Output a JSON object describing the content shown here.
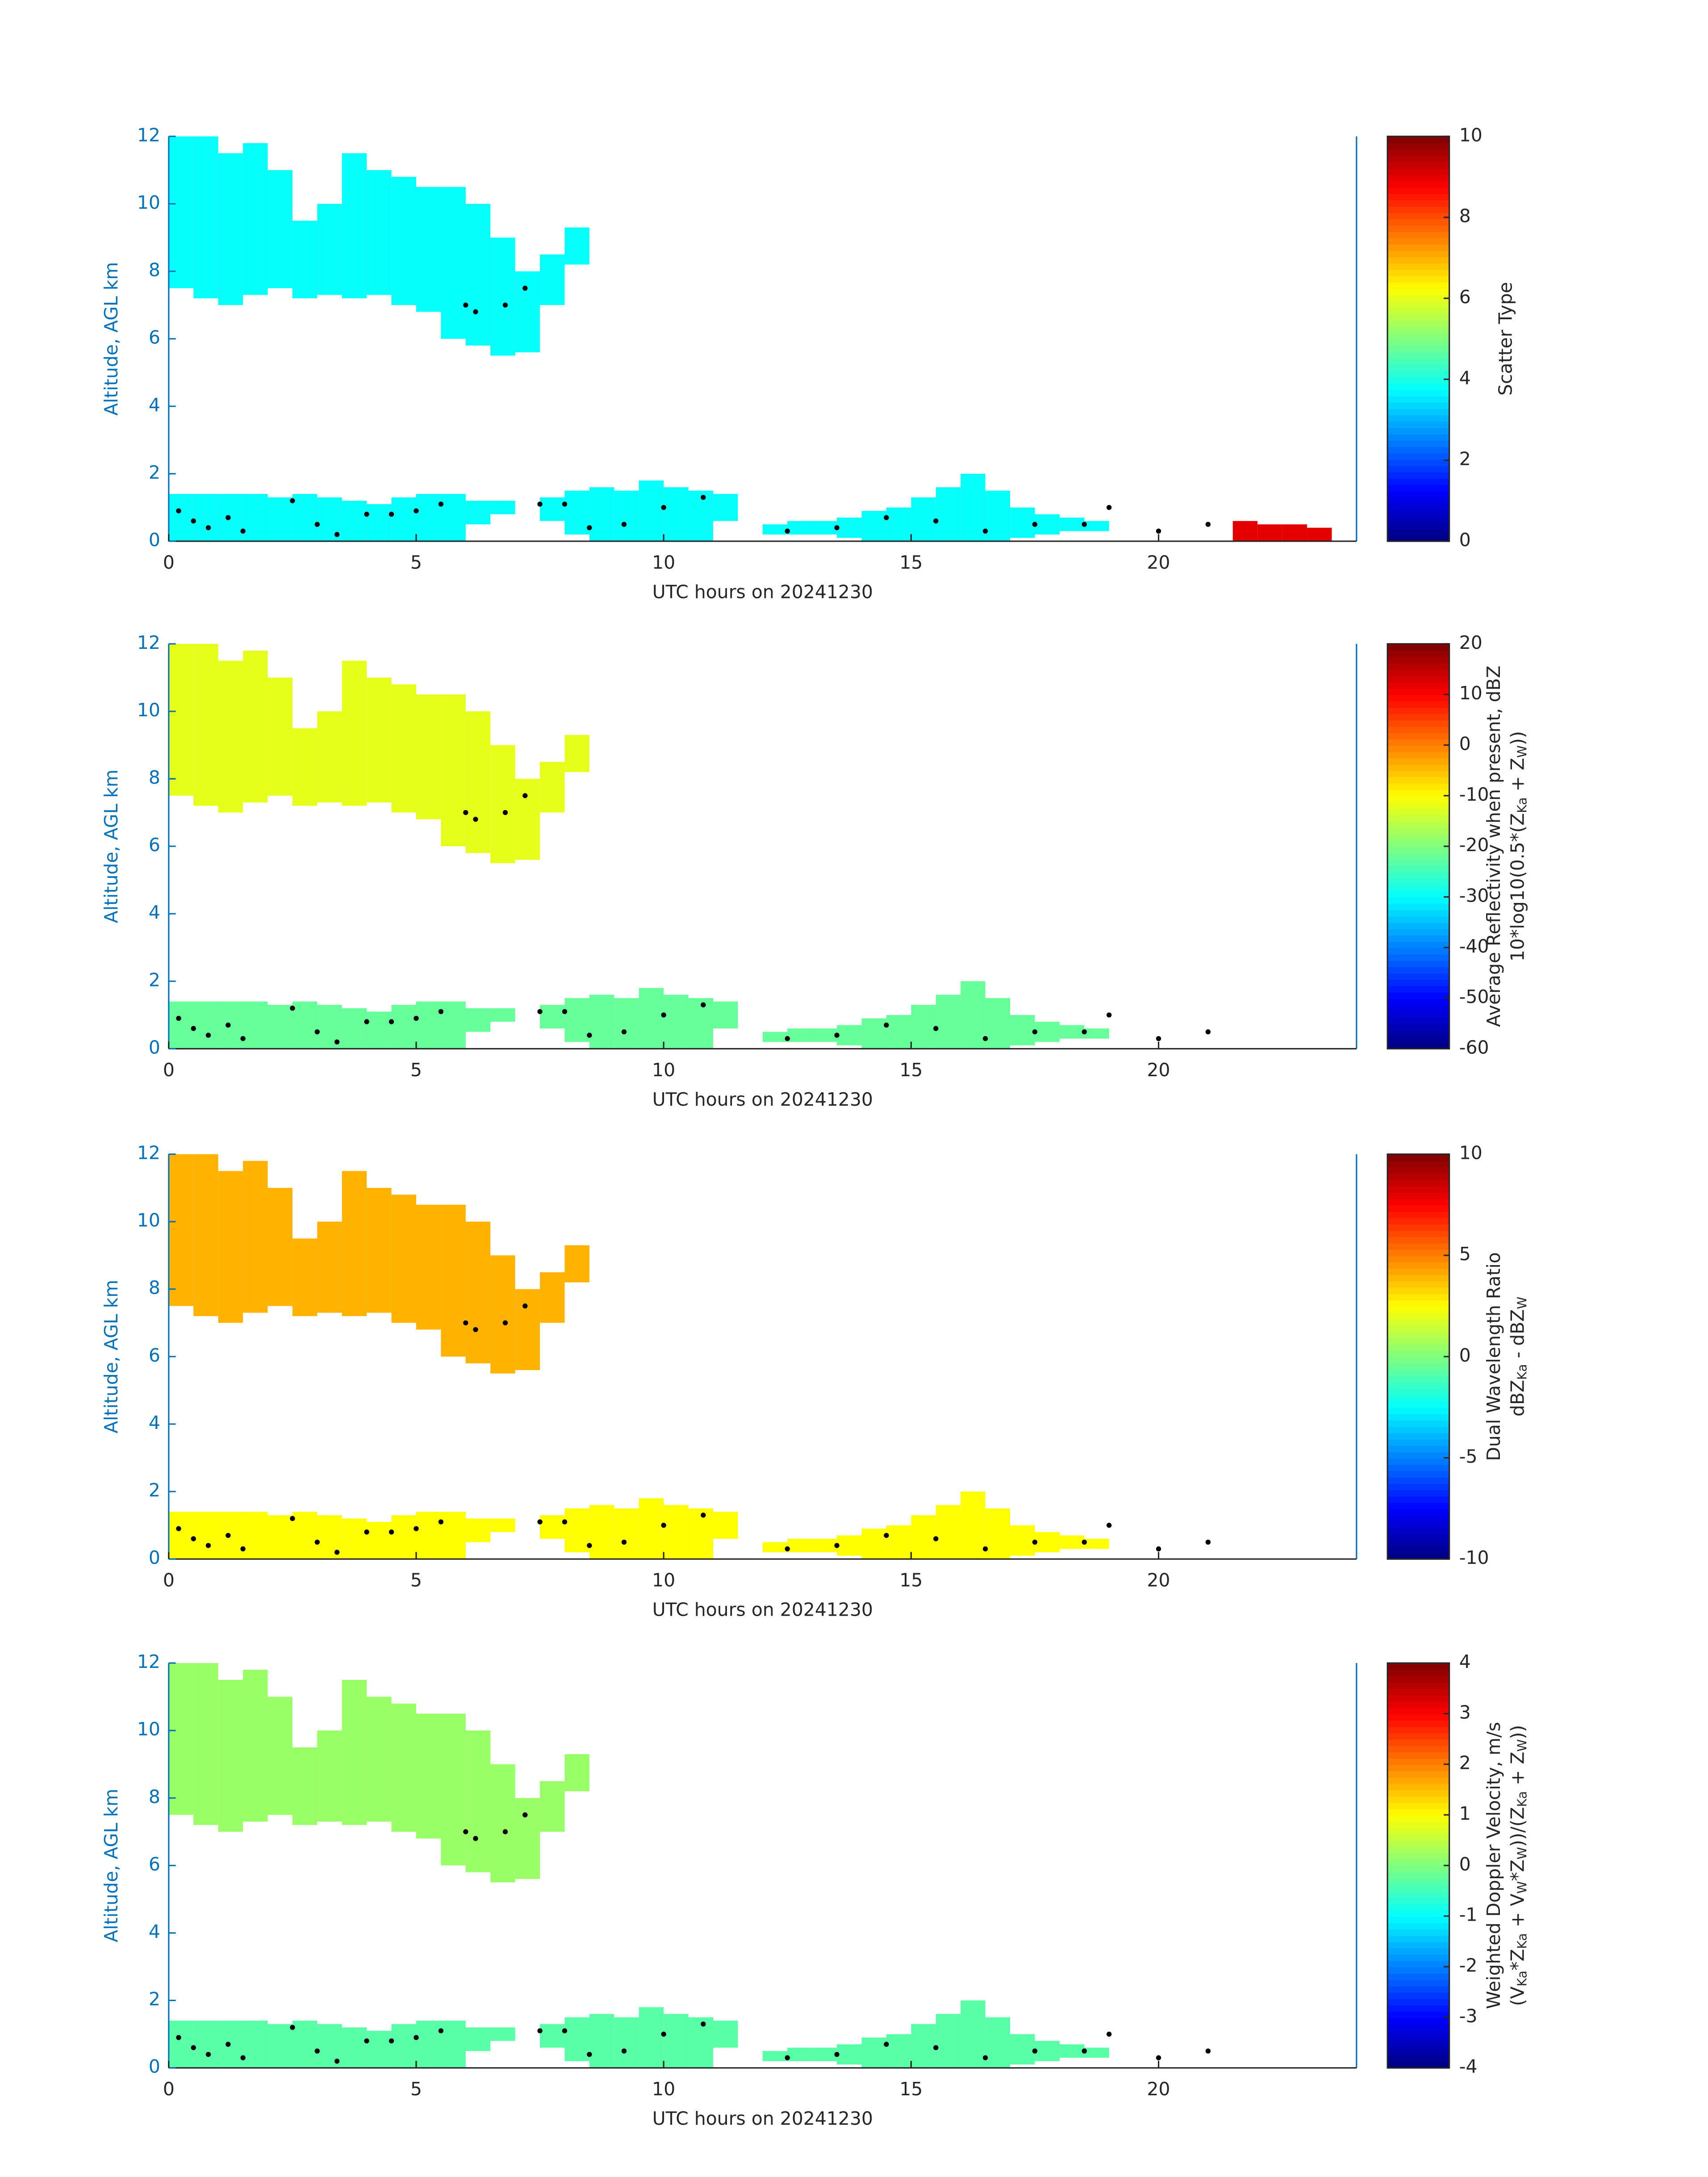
{
  "chart_data": [
    {
      "type": "heatmap",
      "xlabel": "UTC hours on 20241230",
      "ylabel": "Altitude, AGL km",
      "xlim": [
        0,
        24
      ],
      "xticks": [
        0,
        5,
        10,
        15,
        20
      ],
      "ylim": [
        0,
        12
      ],
      "yticks": [
        0,
        2,
        4,
        6,
        8,
        10,
        12
      ],
      "colormap": "jet",
      "clim": [
        0,
        10
      ],
      "cticks": [
        0,
        2,
        4,
        6,
        8,
        10
      ],
      "cbar_label": [
        [
          "Scatter Type"
        ]
      ],
      "layers": [
        {
          "x": [
            0,
            0.5,
            1,
            1.5,
            2,
            2.5,
            3,
            3.5,
            4,
            4.5,
            5,
            5.5,
            6,
            6.5,
            7,
            7.5,
            8
          ],
          "top": [
            12,
            12,
            11.5,
            11.8,
            11,
            9.5,
            10,
            11.5,
            11,
            10.8,
            10.5,
            10.5,
            10,
            9,
            8,
            8.5,
            9.3
          ],
          "base": [
            7.5,
            7.2,
            7,
            7.3,
            7.5,
            7.2,
            7.3,
            7.2,
            7.3,
            7,
            6.8,
            6,
            5.8,
            5.5,
            5.6,
            7,
            8.2
          ],
          "value": 3.8
        },
        {
          "x": [
            0,
            0.5,
            1,
            1.5,
            2,
            2.5,
            3,
            3.5,
            4,
            4.5,
            5,
            5.5,
            6,
            6.5,
            7,
            7.5,
            8,
            8.5,
            9,
            9.5,
            10,
            10.5,
            11,
            11.5,
            12,
            12.5,
            13,
            13.5,
            14,
            14.5,
            15,
            15.5,
            16,
            16.5,
            17,
            17.5,
            18,
            18.5,
            19
          ],
          "top": [
            1.4,
            1.4,
            1.4,
            1.4,
            1.3,
            1.4,
            1.3,
            1.2,
            1.1,
            1.3,
            1.4,
            1.4,
            1.2,
            1.2,
            null,
            1.3,
            1.5,
            1.6,
            1.5,
            1.8,
            1.6,
            1.5,
            1.4,
            null,
            0.5,
            0.6,
            0.6,
            0.7,
            0.9,
            1.0,
            1.3,
            1.6,
            2.0,
            1.5,
            1.0,
            0.8,
            0.7,
            0.6,
            null
          ],
          "base": [
            0,
            0,
            0,
            0,
            0,
            0,
            0,
            0,
            0,
            0,
            0,
            0,
            0.5,
            0.8,
            null,
            0.6,
            0.2,
            0,
            0,
            0,
            0,
            0,
            0.6,
            null,
            0.2,
            0.2,
            0.2,
            0.1,
            0,
            0,
            0,
            0,
            0,
            0,
            0.1,
            0.2,
            0.3,
            0.3,
            null
          ],
          "value": 3.8
        },
        {
          "x": [
            21.5,
            22,
            22.5,
            23
          ],
          "top": [
            0.6,
            0.5,
            0.5,
            0.4
          ],
          "base": [
            0,
            0,
            0,
            0
          ],
          "value": 9
        }
      ],
      "dots": {
        "x": [
          0.2,
          0.5,
          0.8,
          1.2,
          1.5,
          2.5,
          3,
          3.4,
          4,
          4.5,
          5,
          5.5,
          6,
          6.2,
          6.8,
          7.2,
          7.5,
          8,
          8.5,
          9.2,
          10,
          10.8,
          12.5,
          13.5,
          14.5,
          15.5,
          16.5,
          17.5,
          18.5,
          19,
          20,
          21
        ],
        "y": [
          0.9,
          0.6,
          0.4,
          0.7,
          0.3,
          1.2,
          0.5,
          0.2,
          0.8,
          0.8,
          0.9,
          1.1,
          7,
          6.8,
          7,
          7.5,
          1.1,
          1.1,
          0.4,
          0.5,
          1,
          1.3,
          0.3,
          0.4,
          0.7,
          0.6,
          0.3,
          0.5,
          0.5,
          1,
          0.3,
          0.5
        ]
      }
    },
    {
      "type": "heatmap",
      "xlabel": "UTC hours on 20241230",
      "ylabel": "Altitude, AGL km",
      "xlim": [
        0,
        24
      ],
      "xticks": [
        0,
        5,
        10,
        15,
        20
      ],
      "ylim": [
        0,
        12
      ],
      "yticks": [
        0,
        2,
        4,
        6,
        8,
        10,
        12
      ],
      "colormap": "jet",
      "clim": [
        -60,
        20
      ],
      "cticks": [
        -60,
        -50,
        -40,
        -30,
        -20,
        -10,
        0,
        10,
        20
      ],
      "cbar_label": [
        [
          "Average Reflectivity when present, dBZ"
        ],
        [
          "10*log10(0.5*(Z",
          "Ka",
          " + Z",
          "W",
          "))"
        ]
      ],
      "layers": [
        {
          "x": [
            0,
            0.5,
            1,
            1.5,
            2,
            2.5,
            3,
            3.5,
            4,
            4.5,
            5,
            5.5,
            6,
            6.5,
            7,
            7.5,
            8
          ],
          "top": [
            12,
            12,
            11.5,
            11.8,
            11,
            9.5,
            10,
            11.5,
            11,
            10.8,
            10.5,
            10.5,
            10,
            9,
            8,
            8.5,
            9.3
          ],
          "base": [
            7.5,
            7.2,
            7,
            7.3,
            7.5,
            7.2,
            7.3,
            7.2,
            7.3,
            7,
            6.8,
            6,
            5.8,
            5.5,
            5.6,
            7,
            8.2
          ],
          "value": -12
        },
        {
          "x": [
            0,
            0.5,
            1,
            1.5,
            2,
            2.5,
            3,
            3.5,
            4,
            4.5,
            5,
            5.5,
            6,
            6.5,
            7,
            7.5,
            8,
            8.5,
            9,
            9.5,
            10,
            10.5,
            11,
            11.5,
            12,
            12.5,
            13,
            13.5,
            14,
            14.5,
            15,
            15.5,
            16,
            16.5,
            17,
            17.5,
            18,
            18.5,
            19
          ],
          "top": [
            1.4,
            1.4,
            1.4,
            1.4,
            1.3,
            1.4,
            1.3,
            1.2,
            1.1,
            1.3,
            1.4,
            1.4,
            1.2,
            1.2,
            null,
            1.3,
            1.5,
            1.6,
            1.5,
            1.8,
            1.6,
            1.5,
            1.4,
            null,
            0.5,
            0.6,
            0.6,
            0.7,
            0.9,
            1.0,
            1.3,
            1.6,
            2.0,
            1.5,
            1.0,
            0.8,
            0.7,
            0.6,
            null
          ],
          "base": [
            0,
            0,
            0,
            0,
            0,
            0,
            0,
            0,
            0,
            0,
            0,
            0,
            0.5,
            0.8,
            null,
            0.6,
            0.2,
            0,
            0,
            0,
            0,
            0,
            0.6,
            null,
            0.2,
            0.2,
            0.2,
            0.1,
            0,
            0,
            0,
            0,
            0,
            0,
            0.1,
            0.2,
            0.3,
            0.3,
            null
          ],
          "value": -22
        }
      ],
      "dots": {
        "x": [
          0.2,
          0.5,
          0.8,
          1.2,
          1.5,
          2.5,
          3,
          3.4,
          4,
          4.5,
          5,
          5.5,
          6,
          6.2,
          6.8,
          7.2,
          7.5,
          8,
          8.5,
          9.2,
          10,
          10.8,
          12.5,
          13.5,
          14.5,
          15.5,
          16.5,
          17.5,
          18.5,
          19,
          20,
          21
        ],
        "y": [
          0.9,
          0.6,
          0.4,
          0.7,
          0.3,
          1.2,
          0.5,
          0.2,
          0.8,
          0.8,
          0.9,
          1.1,
          7,
          6.8,
          7,
          7.5,
          1.1,
          1.1,
          0.4,
          0.5,
          1,
          1.3,
          0.3,
          0.4,
          0.7,
          0.6,
          0.3,
          0.5,
          0.5,
          1,
          0.3,
          0.5
        ]
      }
    },
    {
      "type": "heatmap",
      "xlabel": "UTC hours on 20241230",
      "ylabel": "Altitude, AGL km",
      "xlim": [
        0,
        24
      ],
      "xticks": [
        0,
        5,
        10,
        15,
        20
      ],
      "ylim": [
        0,
        12
      ],
      "yticks": [
        0,
        2,
        4,
        6,
        8,
        10,
        12
      ],
      "colormap": "jet",
      "clim": [
        -10,
        10
      ],
      "cticks": [
        -10,
        -5,
        0,
        5,
        10
      ],
      "cbar_label": [
        [
          "Dual Wavelength Ratio"
        ],
        [
          "dBZ",
          "Ka",
          " - dBZ",
          "W"
        ]
      ],
      "layers": [
        {
          "x": [
            0,
            0.5,
            1,
            1.5,
            2,
            2.5,
            3,
            3.5,
            4,
            4.5,
            5,
            5.5,
            6,
            6.5,
            7,
            7.5,
            8
          ],
          "top": [
            12,
            12,
            11.5,
            11.8,
            11,
            9.5,
            10,
            11.5,
            11,
            10.8,
            10.5,
            10.5,
            10,
            9,
            8,
            8.5,
            9.3
          ],
          "base": [
            7.5,
            7.2,
            7,
            7.3,
            7.5,
            7.2,
            7.3,
            7.2,
            7.3,
            7,
            6.8,
            6,
            5.8,
            5.5,
            5.6,
            7,
            8.2
          ],
          "value": 4
        },
        {
          "x": [
            0,
            0.5,
            1,
            1.5,
            2,
            2.5,
            3,
            3.5,
            4,
            4.5,
            5,
            5.5,
            6,
            6.5,
            7,
            7.5,
            8,
            8.5,
            9,
            9.5,
            10,
            10.5,
            11,
            11.5,
            12,
            12.5,
            13,
            13.5,
            14,
            14.5,
            15,
            15.5,
            16,
            16.5,
            17,
            17.5,
            18,
            18.5,
            19
          ],
          "top": [
            1.4,
            1.4,
            1.4,
            1.4,
            1.3,
            1.4,
            1.3,
            1.2,
            1.1,
            1.3,
            1.4,
            1.4,
            1.2,
            1.2,
            null,
            1.3,
            1.5,
            1.6,
            1.5,
            1.8,
            1.6,
            1.5,
            1.4,
            null,
            0.5,
            0.6,
            0.6,
            0.7,
            0.9,
            1.0,
            1.3,
            1.6,
            2.0,
            1.5,
            1.0,
            0.8,
            0.7,
            0.6,
            null
          ],
          "base": [
            0,
            0,
            0,
            0,
            0,
            0,
            0,
            0,
            0,
            0,
            0,
            0,
            0.5,
            0.8,
            null,
            0.6,
            0.2,
            0,
            0,
            0,
            0,
            0,
            0.6,
            null,
            0.2,
            0.2,
            0.2,
            0.1,
            0,
            0,
            0,
            0,
            0,
            0,
            0.1,
            0.2,
            0.3,
            0.3,
            null
          ],
          "value": 2.5
        }
      ],
      "dots": {
        "x": [
          0.2,
          0.5,
          0.8,
          1.2,
          1.5,
          2.5,
          3,
          3.4,
          4,
          4.5,
          5,
          5.5,
          6,
          6.2,
          6.8,
          7.2,
          7.5,
          8,
          8.5,
          9.2,
          10,
          10.8,
          12.5,
          13.5,
          14.5,
          15.5,
          16.5,
          17.5,
          18.5,
          19,
          20,
          21
        ],
        "y": [
          0.9,
          0.6,
          0.4,
          0.7,
          0.3,
          1.2,
          0.5,
          0.2,
          0.8,
          0.8,
          0.9,
          1.1,
          7,
          6.8,
          7,
          7.5,
          1.1,
          1.1,
          0.4,
          0.5,
          1,
          1.3,
          0.3,
          0.4,
          0.7,
          0.6,
          0.3,
          0.5,
          0.5,
          1,
          0.3,
          0.5
        ]
      }
    },
    {
      "type": "heatmap",
      "xlabel": "UTC hours on 20241230",
      "ylabel": "Altitude, AGL km",
      "xlim": [
        0,
        24
      ],
      "xticks": [
        0,
        5,
        10,
        15,
        20
      ],
      "ylim": [
        0,
        12
      ],
      "yticks": [
        0,
        2,
        4,
        6,
        8,
        10,
        12
      ],
      "colormap": "jet",
      "clim": [
        -4,
        4
      ],
      "cticks": [
        -4,
        -3,
        -2,
        -1,
        0,
        1,
        2,
        3,
        4
      ],
      "cbar_label": [
        [
          "Weighted Doppler Velocity, m/s"
        ],
        [
          "(V",
          "Ka",
          "*Z",
          "Ka",
          " + V",
          "W",
          "*Z",
          "W",
          "))/(Z",
          "Ka",
          " + Z",
          "W",
          "))"
        ]
      ],
      "layers": [
        {
          "x": [
            0,
            0.5,
            1,
            1.5,
            2,
            2.5,
            3,
            3.5,
            4,
            4.5,
            5,
            5.5,
            6,
            6.5,
            7,
            7.5,
            8
          ],
          "top": [
            12,
            12,
            11.5,
            11.8,
            11,
            9.5,
            10,
            11.5,
            11,
            10.8,
            10.5,
            10.5,
            10,
            9,
            8,
            8.5,
            9.3
          ],
          "base": [
            7.5,
            7.2,
            7,
            7.3,
            7.5,
            7.2,
            7.3,
            7.2,
            7.3,
            7,
            6.8,
            6,
            5.8,
            5.5,
            5.6,
            7,
            8.2
          ],
          "value": 0.2
        },
        {
          "x": [
            0,
            0.5,
            1,
            1.5,
            2,
            2.5,
            3,
            3.5,
            4,
            4.5,
            5,
            5.5,
            6,
            6.5,
            7,
            7.5,
            8,
            8.5,
            9,
            9.5,
            10,
            10.5,
            11,
            11.5,
            12,
            12.5,
            13,
            13.5,
            14,
            14.5,
            15,
            15.5,
            16,
            16.5,
            17,
            17.5,
            18,
            18.5,
            19
          ],
          "top": [
            1.4,
            1.4,
            1.4,
            1.4,
            1.3,
            1.4,
            1.3,
            1.2,
            1.1,
            1.3,
            1.4,
            1.4,
            1.2,
            1.2,
            null,
            1.3,
            1.5,
            1.6,
            1.5,
            1.8,
            1.6,
            1.5,
            1.4,
            null,
            0.5,
            0.6,
            0.6,
            0.7,
            0.9,
            1.0,
            1.3,
            1.6,
            2.0,
            1.5,
            1.0,
            0.8,
            0.7,
            0.6,
            null
          ],
          "base": [
            0,
            0,
            0,
            0,
            0,
            0,
            0,
            0,
            0,
            0,
            0,
            0,
            0.5,
            0.8,
            null,
            0.6,
            0.2,
            0,
            0,
            0,
            0,
            0,
            0.6,
            null,
            0.2,
            0.2,
            0.2,
            0.1,
            0,
            0,
            0,
            0,
            0,
            0,
            0.1,
            0.2,
            0.3,
            0.3,
            null
          ],
          "value": -0.3
        }
      ],
      "dots": {
        "x": [
          0.2,
          0.5,
          0.8,
          1.2,
          1.5,
          2.5,
          3,
          3.4,
          4,
          4.5,
          5,
          5.5,
          6,
          6.2,
          6.8,
          7.2,
          7.5,
          8,
          8.5,
          9.2,
          10,
          10.8,
          12.5,
          13.5,
          14.5,
          15.5,
          16.5,
          17.5,
          18.5,
          19,
          20,
          21
        ],
        "y": [
          0.9,
          0.6,
          0.4,
          0.7,
          0.3,
          1.2,
          0.5,
          0.2,
          0.8,
          0.8,
          0.9,
          1.1,
          7,
          6.8,
          7,
          7.5,
          1.1,
          1.1,
          0.4,
          0.5,
          1,
          1.3,
          0.3,
          0.4,
          0.7,
          0.6,
          0.3,
          0.5,
          0.5,
          1,
          0.3,
          0.5
        ]
      }
    }
  ]
}
